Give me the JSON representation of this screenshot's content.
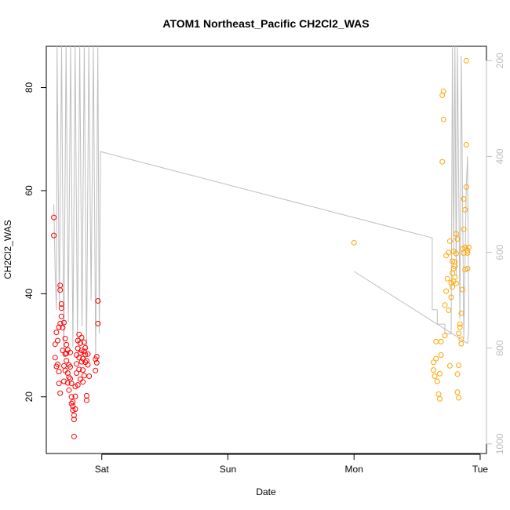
{
  "chart_data": {
    "type": "scatter",
    "title": "ATOM1 Northeast_Pacific CH2Cl2_WAS",
    "xlabel": "Date",
    "ylabel": "CH2Cl2_WAS",
    "x_axis": {
      "unit": "day",
      "ticks": [
        {
          "label": "Sat",
          "value": 0
        },
        {
          "label": "Sun",
          "value": 1
        },
        {
          "label": "Mon",
          "value": 2
        },
        {
          "label": "Tue",
          "value": 3
        }
      ],
      "xlim": [
        -0.44,
        3.05
      ]
    },
    "y_axis": {
      "ticks": [
        20,
        40,
        60,
        80
      ],
      "ylim": [
        9,
        88
      ]
    },
    "secondary_axis": {
      "description": "altitude trace (grey line), inverted",
      "ticks": [
        200,
        400,
        600,
        800,
        1000
      ],
      "ylim": [
        1020,
        170
      ],
      "color": "#bebebe"
    },
    "series": [
      {
        "color": "#ff0000",
        "points": [
          [
            -0.38,
            54.8
          ],
          [
            -0.38,
            51.3
          ],
          [
            -0.37,
            27.6
          ],
          [
            -0.37,
            30.2
          ],
          [
            -0.36,
            32.5
          ],
          [
            -0.36,
            25.9
          ],
          [
            -0.35,
            30.9
          ],
          [
            -0.35,
            26.3
          ],
          [
            -0.34,
            24.9
          ],
          [
            -0.34,
            33.5
          ],
          [
            -0.34,
            22.6
          ],
          [
            -0.33,
            20.7
          ],
          [
            -0.33,
            34.2
          ],
          [
            -0.33,
            41.6
          ],
          [
            -0.33,
            40.7
          ],
          [
            -0.32,
            38.0
          ],
          [
            -0.32,
            37.2
          ],
          [
            -0.32,
            35.6
          ],
          [
            -0.31,
            33.4
          ],
          [
            -0.31,
            29.0
          ],
          [
            -0.3,
            34.4
          ],
          [
            -0.3,
            26.0
          ],
          [
            -0.3,
            23.0
          ],
          [
            -0.29,
            31.3
          ],
          [
            -0.29,
            28.3
          ],
          [
            -0.29,
            25.1
          ],
          [
            -0.28,
            30.1
          ],
          [
            -0.28,
            28.4
          ],
          [
            -0.28,
            27.0
          ],
          [
            -0.27,
            29.1
          ],
          [
            -0.27,
            24.6
          ],
          [
            -0.27,
            22.7
          ],
          [
            -0.26,
            26.2
          ],
          [
            -0.26,
            23.8
          ],
          [
            -0.26,
            21.3
          ],
          [
            -0.25,
            28.6
          ],
          [
            -0.25,
            25.8
          ],
          [
            -0.25,
            23.5
          ],
          [
            -0.24,
            22.6
          ],
          [
            -0.24,
            20.0
          ],
          [
            -0.24,
            18.7
          ],
          [
            -0.23,
            19.0
          ],
          [
            -0.23,
            17.4
          ],
          [
            -0.23,
            18.2
          ],
          [
            -0.22,
            16.4
          ],
          [
            -0.22,
            12.3
          ],
          [
            -0.22,
            15.6
          ],
          [
            -0.21,
            17.6
          ],
          [
            -0.21,
            20.1
          ],
          [
            -0.21,
            22.0
          ],
          [
            -0.2,
            24.6
          ],
          [
            -0.2,
            26.4
          ],
          [
            -0.2,
            28.1
          ],
          [
            -0.19,
            29.4
          ],
          [
            -0.19,
            30.9
          ],
          [
            -0.19,
            22.3
          ],
          [
            -0.18,
            27.6
          ],
          [
            -0.18,
            32.1
          ],
          [
            -0.18,
            25.3
          ],
          [
            -0.17,
            23.4
          ],
          [
            -0.17,
            28.5
          ],
          [
            -0.17,
            30.4
          ],
          [
            -0.16,
            26.8
          ],
          [
            -0.16,
            29.0
          ],
          [
            -0.16,
            31.5
          ],
          [
            -0.15,
            27.4
          ],
          [
            -0.15,
            25.2
          ],
          [
            -0.15,
            22.9
          ],
          [
            -0.14,
            28.8
          ],
          [
            -0.14,
            30.6
          ],
          [
            -0.14,
            24.1
          ],
          [
            -0.13,
            26.7
          ],
          [
            -0.13,
            29.5
          ],
          [
            -0.13,
            28.2
          ],
          [
            -0.12,
            27.0
          ],
          [
            -0.12,
            19.3
          ],
          [
            -0.12,
            20.2
          ],
          [
            -0.11,
            28.3
          ],
          [
            -0.11,
            26.2
          ],
          [
            -0.1,
            24.0
          ],
          [
            -0.03,
            38.6
          ],
          [
            -0.03,
            34.2
          ],
          [
            -0.04,
            27.8
          ],
          [
            -0.04,
            26.6
          ],
          [
            -0.05,
            27.3
          ],
          [
            -0.05,
            25.1
          ]
        ]
      },
      {
        "color": "#ffa500",
        "points": [
          [
            2.0,
            49.9
          ],
          [
            2.63,
            26.7
          ],
          [
            2.63,
            25.2
          ],
          [
            2.64,
            24.0
          ],
          [
            2.65,
            27.4
          ],
          [
            2.65,
            30.7
          ],
          [
            2.66,
            23.0
          ],
          [
            2.67,
            20.5
          ],
          [
            2.68,
            19.6
          ],
          [
            2.68,
            24.5
          ],
          [
            2.69,
            30.7
          ],
          [
            2.69,
            28.1
          ],
          [
            2.7,
            65.6
          ],
          [
            2.7,
            78.5
          ],
          [
            2.71,
            79.3
          ],
          [
            2.71,
            73.8
          ],
          [
            2.72,
            31.9
          ],
          [
            2.72,
            37.8
          ],
          [
            2.73,
            40.5
          ],
          [
            2.73,
            47.4
          ],
          [
            2.74,
            42.9
          ],
          [
            2.75,
            36.8
          ],
          [
            2.75,
            48.0
          ],
          [
            2.76,
            50.2
          ],
          [
            2.76,
            26.0
          ],
          [
            2.77,
            39.3
          ],
          [
            2.77,
            42.1
          ],
          [
            2.78,
            44.0
          ],
          [
            2.78,
            41.3
          ],
          [
            2.78,
            46.3
          ],
          [
            2.79,
            48.2
          ],
          [
            2.79,
            42.4
          ],
          [
            2.79,
            44.9
          ],
          [
            2.8,
            46.2
          ],
          [
            2.8,
            45.3
          ],
          [
            2.8,
            43.2
          ],
          [
            2.81,
            42.0
          ],
          [
            2.81,
            47.8
          ],
          [
            2.81,
            51.6
          ],
          [
            2.82,
            50.6
          ],
          [
            2.82,
            24.4
          ],
          [
            2.82,
            20.9
          ],
          [
            2.83,
            19.8
          ],
          [
            2.83,
            26.1
          ],
          [
            2.83,
            32.3
          ],
          [
            2.84,
            33.5
          ],
          [
            2.84,
            34.1
          ],
          [
            2.85,
            30.3
          ],
          [
            2.85,
            31.2
          ],
          [
            2.85,
            36.2
          ],
          [
            2.86,
            40.8
          ],
          [
            2.86,
            48.7
          ],
          [
            2.87,
            58.4
          ],
          [
            2.87,
            52.5
          ],
          [
            2.87,
            47.9
          ],
          [
            2.88,
            49.0
          ],
          [
            2.88,
            44.7
          ],
          [
            2.88,
            56.3
          ],
          [
            2.89,
            60.7
          ],
          [
            2.89,
            68.9
          ],
          [
            2.89,
            85.2
          ],
          [
            2.9,
            48.4
          ],
          [
            2.91,
            49.0
          ],
          [
            2.9,
            47.9
          ],
          [
            2.9,
            44.9
          ]
        ]
      }
    ]
  }
}
